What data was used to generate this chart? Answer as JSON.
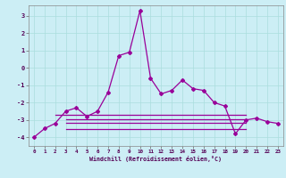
{
  "xlabel": "Windchill (Refroidissement éolien,°C)",
  "bg_color": "#cceef5",
  "grid_color": "#aadddd",
  "line_color": "#990099",
  "x_main": [
    0,
    1,
    2,
    3,
    4,
    5,
    6,
    7,
    8,
    9,
    10,
    11,
    12,
    13,
    14,
    15,
    16,
    17,
    18,
    19,
    20,
    21,
    22,
    23
  ],
  "y_main": [
    -4.0,
    -3.5,
    -3.2,
    -2.5,
    -2.3,
    -2.8,
    -2.5,
    -1.4,
    0.7,
    0.9,
    3.3,
    -0.6,
    -1.5,
    -1.3,
    -0.7,
    -1.2,
    -1.3,
    -2.0,
    -2.2,
    -3.8,
    -3.0,
    -2.9,
    -3.1,
    -3.2
  ],
  "flat_lines": [
    {
      "x": [
        2,
        20
      ],
      "y": -2.7
    },
    {
      "x": [
        3,
        20
      ],
      "y": -2.95
    },
    {
      "x": [
        3,
        20
      ],
      "y": -3.15
    },
    {
      "x": [
        3,
        20
      ],
      "y": -3.55
    }
  ],
  "ylim": [
    -4.5,
    3.6
  ],
  "xlim": [
    -0.5,
    23.5
  ],
  "yticks": [
    -4,
    -3,
    -2,
    -1,
    0,
    1,
    2,
    3
  ],
  "xticks": [
    0,
    1,
    2,
    3,
    4,
    5,
    6,
    7,
    8,
    9,
    10,
    11,
    12,
    13,
    14,
    15,
    16,
    17,
    18,
    19,
    20,
    21,
    22,
    23
  ]
}
